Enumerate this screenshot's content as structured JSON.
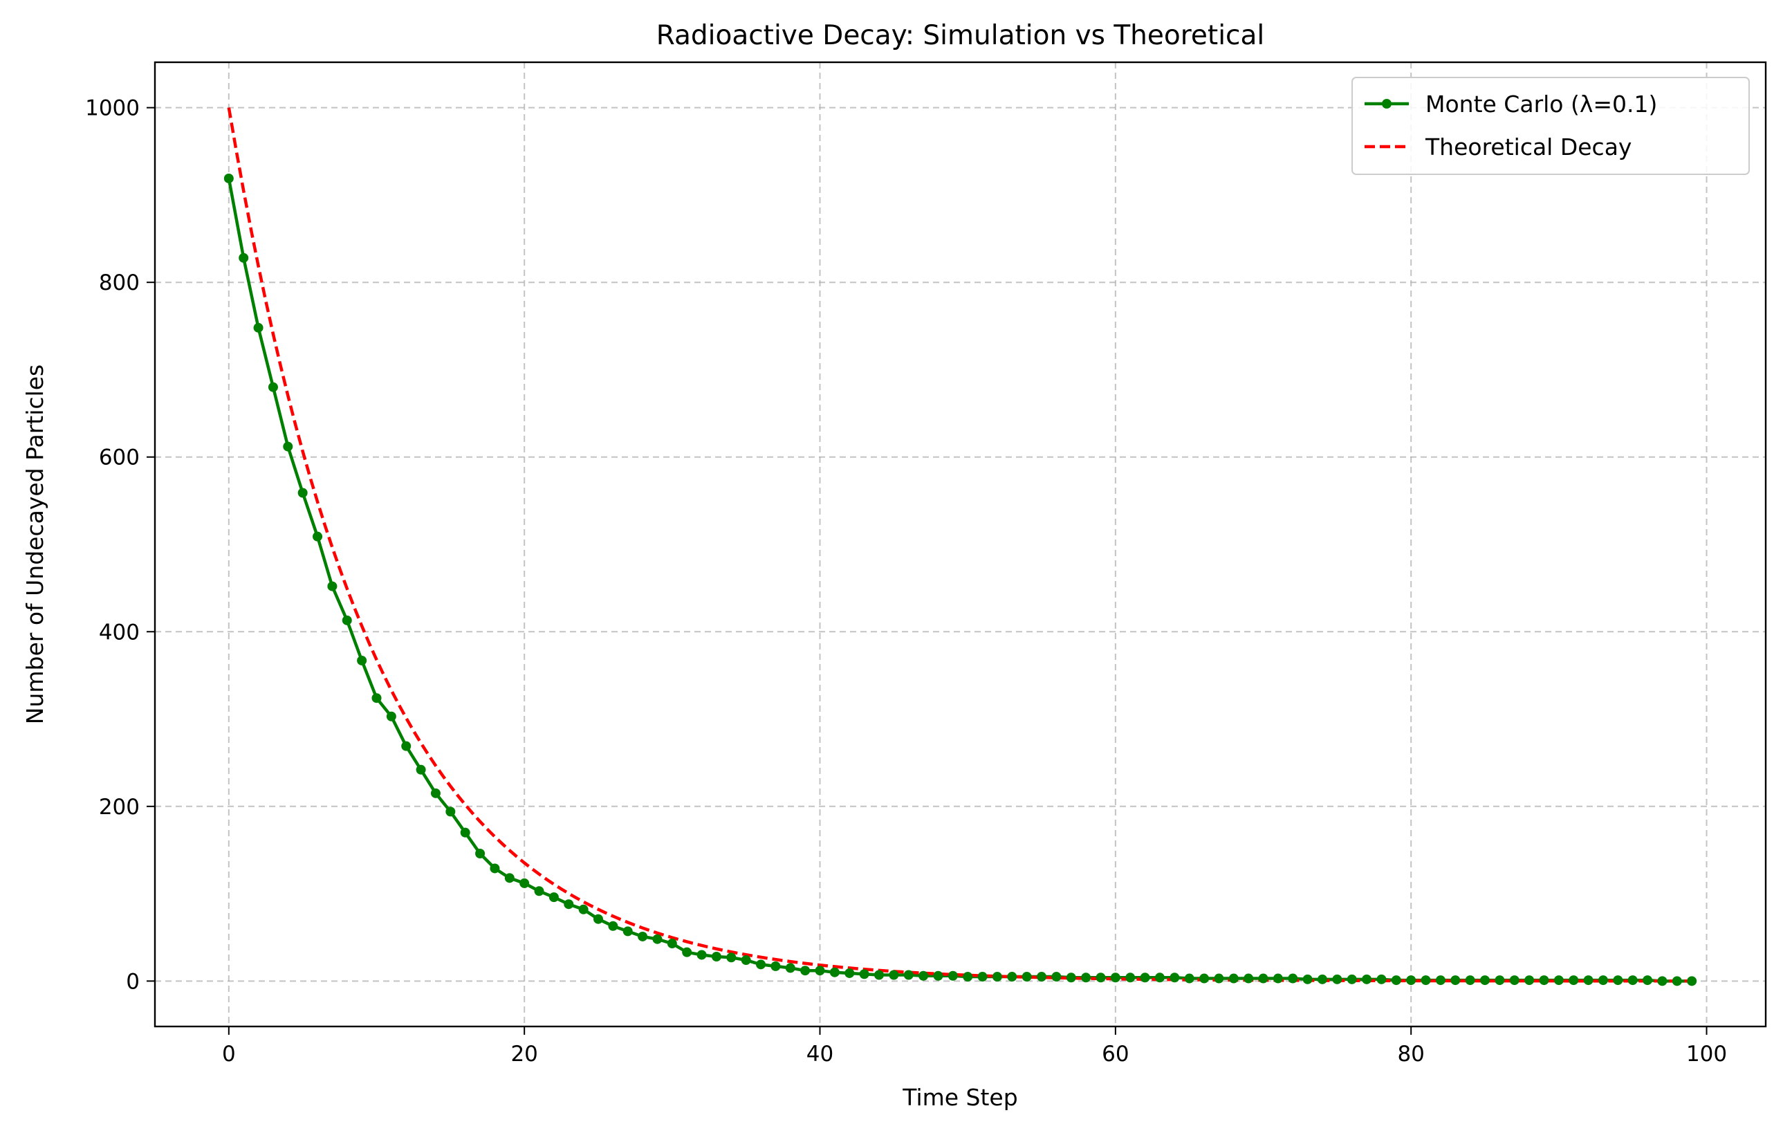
{
  "chart_data": {
    "type": "line",
    "title": "Radioactive Decay: Simulation vs Theoretical",
    "xlabel": "Time Step",
    "ylabel": "Number of Undecayed Particles",
    "xlim": [
      -5,
      104
    ],
    "ylim": [
      -52,
      1052
    ],
    "xticks": [
      0,
      20,
      40,
      60,
      80,
      100
    ],
    "yticks": [
      0,
      200,
      400,
      600,
      800,
      1000
    ],
    "grid": true,
    "legend_position": "top-right",
    "series": [
      {
        "name": "Monte Carlo (λ=0.1)",
        "color": "#008000",
        "style": "solid-with-markers",
        "x": [
          0,
          1,
          2,
          3,
          4,
          5,
          6,
          7,
          8,
          9,
          10,
          11,
          12,
          13,
          14,
          15,
          16,
          17,
          18,
          19,
          20,
          21,
          22,
          23,
          24,
          25,
          26,
          27,
          28,
          29,
          30,
          31,
          32,
          33,
          34,
          35,
          36,
          37,
          38,
          39,
          40,
          41,
          42,
          43,
          44,
          45,
          46,
          47,
          48,
          49,
          50,
          51,
          52,
          53,
          54,
          55,
          56,
          57,
          58,
          59,
          60,
          61,
          62,
          63,
          64,
          65,
          66,
          67,
          68,
          69,
          70,
          71,
          72,
          73,
          74,
          75,
          76,
          77,
          78,
          79,
          80,
          81,
          82,
          83,
          84,
          85,
          86,
          87,
          88,
          89,
          90,
          91,
          92,
          93,
          94,
          95,
          96,
          97,
          98,
          99
        ],
        "y": [
          919,
          828,
          748,
          680,
          612,
          559,
          509,
          452,
          413,
          367,
          324,
          303,
          269,
          242,
          215,
          194,
          170,
          146,
          129,
          118,
          112,
          103,
          96,
          88,
          82,
          71,
          63,
          57,
          51,
          48,
          43,
          33,
          30,
          28,
          27,
          24,
          19,
          17,
          15,
          12,
          12,
          10,
          9,
          8,
          7,
          7,
          7,
          6,
          6,
          6,
          5,
          5,
          5,
          5,
          5,
          5,
          5,
          4,
          4,
          4,
          4,
          4,
          4,
          4,
          4,
          3,
          3,
          3,
          3,
          3,
          3,
          3,
          3,
          2,
          2,
          2,
          2,
          2,
          2,
          1,
          1,
          1,
          1,
          1,
          1,
          1,
          1,
          1,
          1,
          1,
          1,
          1,
          1,
          1,
          1,
          1,
          1,
          0,
          0,
          0
        ]
      },
      {
        "name": "Theoretical Decay",
        "color": "#ff0000",
        "style": "dashed",
        "function": "1000*exp(-0.1*t)",
        "x_range": [
          0,
          99
        ]
      }
    ]
  }
}
